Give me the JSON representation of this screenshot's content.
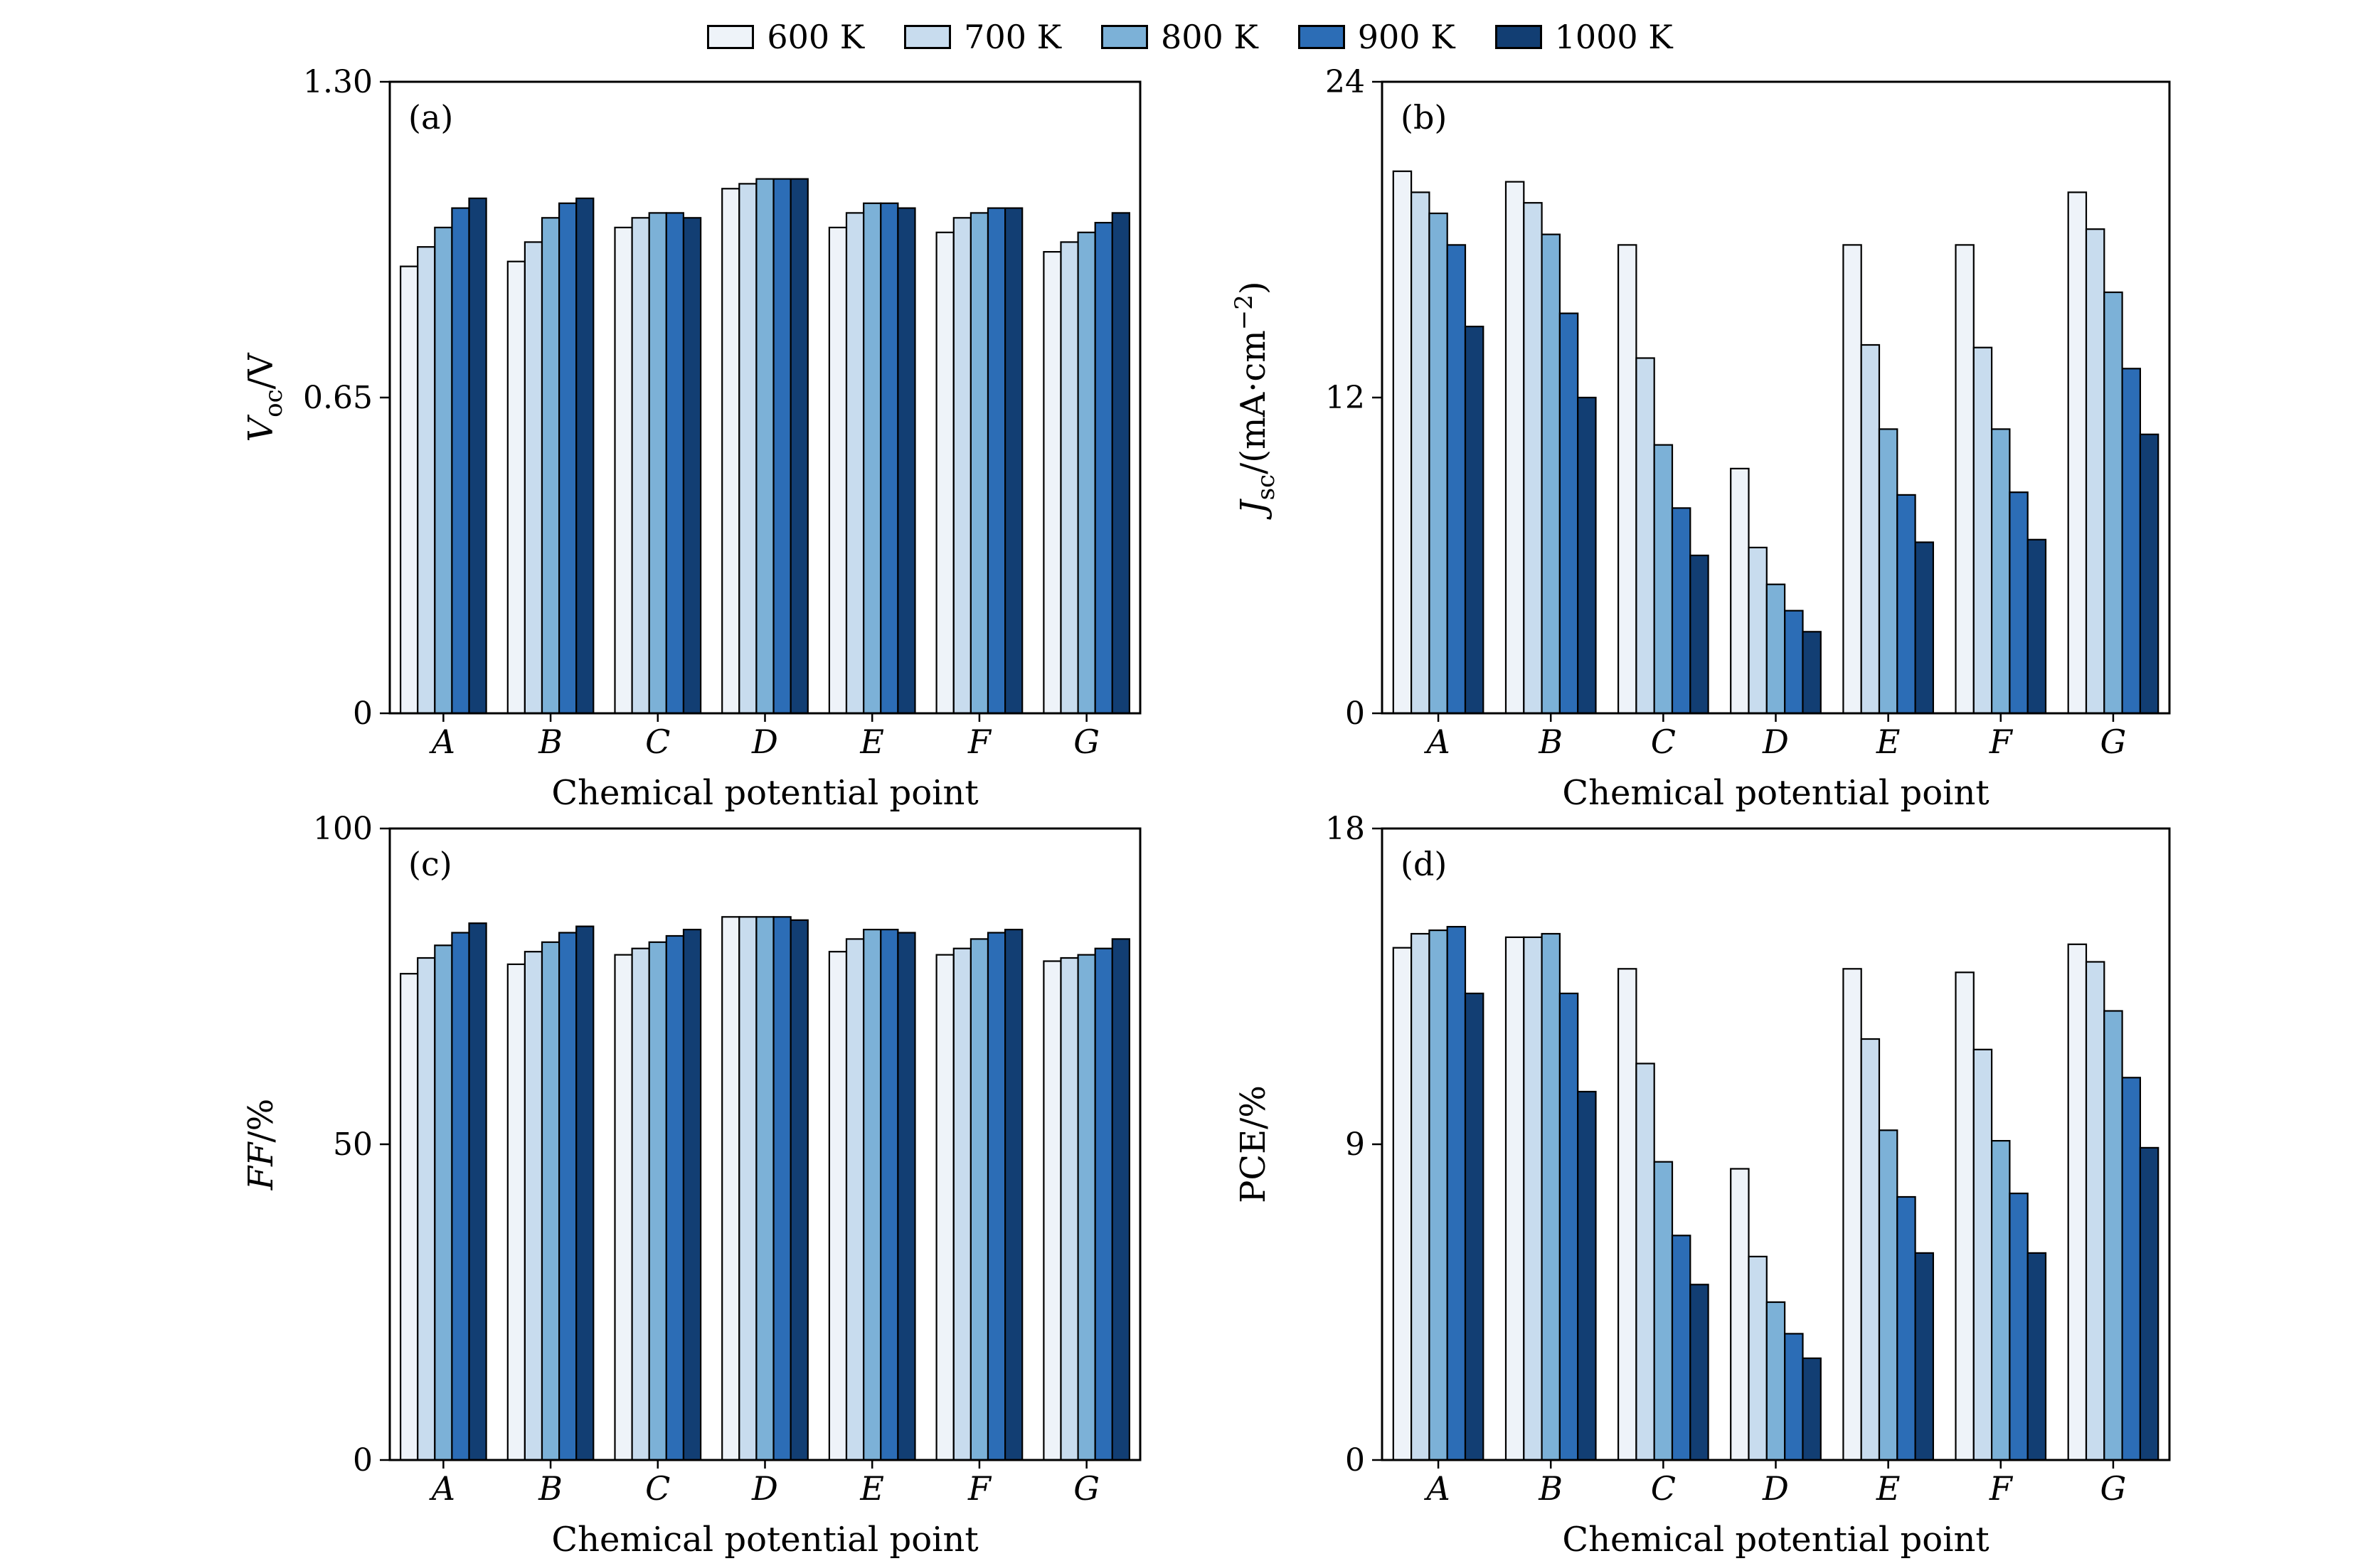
{
  "figure": {
    "legend": [
      {
        "label": "600 K",
        "color": "#eef3f9"
      },
      {
        "label": "700 K",
        "color": "#c8dcee"
      },
      {
        "label": "800 K",
        "color": "#7cb1d7"
      },
      {
        "label": "900 K",
        "color": "#2c6db6"
      },
      {
        "label": "1000 K",
        "color": "#123e73"
      }
    ]
  },
  "chart_data": [
    {
      "type": "bar",
      "panel_tag": "(a)",
      "xlabel": "Chemical potential point",
      "categories": [
        "A",
        "B",
        "C",
        "D",
        "E",
        "F",
        "G"
      ],
      "ylim": [
        0,
        1.3
      ],
      "yticks": [
        {
          "v": 0,
          "label": "0"
        },
        {
          "v": 0.65,
          "label": "0.65"
        },
        {
          "v": 1.3,
          "label": "1.30"
        }
      ],
      "ylabel": [
        {
          "t": "V",
          "s": "italic"
        },
        {
          "t": "oc",
          "s": "sub"
        },
        {
          "t": "/V",
          "s": ""
        }
      ],
      "series": [
        {
          "name": "600 K",
          "values": [
            0.92,
            0.93,
            1.0,
            1.08,
            1.0,
            0.99,
            0.95
          ]
        },
        {
          "name": "700 K",
          "values": [
            0.96,
            0.97,
            1.02,
            1.09,
            1.03,
            1.02,
            0.97
          ]
        },
        {
          "name": "800 K",
          "values": [
            1.0,
            1.02,
            1.03,
            1.1,
            1.05,
            1.03,
            0.99
          ]
        },
        {
          "name": "900 K",
          "values": [
            1.04,
            1.05,
            1.03,
            1.1,
            1.05,
            1.04,
            1.01
          ]
        },
        {
          "name": "1000 K",
          "values": [
            1.06,
            1.06,
            1.02,
            1.1,
            1.04,
            1.04,
            1.03
          ]
        }
      ]
    },
    {
      "type": "bar",
      "panel_tag": "(b)",
      "xlabel": "Chemical potential point",
      "categories": [
        "A",
        "B",
        "C",
        "D",
        "E",
        "F",
        "G"
      ],
      "ylim": [
        0,
        24
      ],
      "yticks": [
        {
          "v": 0,
          "label": "0"
        },
        {
          "v": 12,
          "label": "12"
        },
        {
          "v": 24,
          "label": "24"
        }
      ],
      "ylabel": [
        {
          "t": "J",
          "s": "italic"
        },
        {
          "t": "sc",
          "s": "sub"
        },
        {
          "t": "/(mA·cm",
          "s": ""
        },
        {
          "t": "−2",
          "s": "sup"
        },
        {
          "t": ")",
          "s": ""
        }
      ],
      "series": [
        {
          "name": "600 K",
          "values": [
            20.6,
            20.2,
            17.8,
            9.3,
            17.8,
            17.8,
            19.8
          ]
        },
        {
          "name": "700 K",
          "values": [
            19.8,
            19.4,
            13.5,
            6.3,
            14.0,
            13.9,
            18.4
          ]
        },
        {
          "name": "800 K",
          "values": [
            19.0,
            18.2,
            10.2,
            4.9,
            10.8,
            10.8,
            16.0
          ]
        },
        {
          "name": "900 K",
          "values": [
            17.8,
            15.2,
            7.8,
            3.9,
            8.3,
            8.4,
            13.1
          ]
        },
        {
          "name": "1000 K",
          "values": [
            14.7,
            12.0,
            6.0,
            3.1,
            6.5,
            6.6,
            10.6
          ]
        }
      ]
    },
    {
      "type": "bar",
      "panel_tag": "(c)",
      "xlabel": "Chemical potential point",
      "categories": [
        "A",
        "B",
        "C",
        "D",
        "E",
        "F",
        "G"
      ],
      "ylim": [
        0,
        100
      ],
      "yticks": [
        {
          "v": 0,
          "label": "0"
        },
        {
          "v": 50,
          "label": "50"
        },
        {
          "v": 100,
          "label": "100"
        }
      ],
      "ylabel": [
        {
          "t": "FF",
          "s": "italic"
        },
        {
          "t": "/%",
          "s": ""
        }
      ],
      "series": [
        {
          "name": "600 K",
          "values": [
            77.0,
            78.5,
            80.0,
            86.0,
            80.5,
            80.0,
            79.0
          ]
        },
        {
          "name": "700 K",
          "values": [
            79.5,
            80.5,
            81.0,
            86.0,
            82.5,
            81.0,
            79.5
          ]
        },
        {
          "name": "800 K",
          "values": [
            81.5,
            82.0,
            82.0,
            86.0,
            84.0,
            82.5,
            80.0
          ]
        },
        {
          "name": "900 K",
          "values": [
            83.5,
            83.5,
            83.0,
            86.0,
            84.0,
            83.5,
            81.0
          ]
        },
        {
          "name": "1000 K",
          "values": [
            85.0,
            84.5,
            84.0,
            85.5,
            83.5,
            84.0,
            82.5
          ]
        }
      ]
    },
    {
      "type": "bar",
      "panel_tag": "(d)",
      "xlabel": "Chemical potential point",
      "categories": [
        "A",
        "B",
        "C",
        "D",
        "E",
        "F",
        "G"
      ],
      "ylim": [
        0,
        18
      ],
      "yticks": [
        {
          "v": 0,
          "label": "0"
        },
        {
          "v": 9,
          "label": "9"
        },
        {
          "v": 18,
          "label": "18"
        }
      ],
      "ylabel": [
        {
          "t": "PCE/%",
          "s": ""
        }
      ],
      "series": [
        {
          "name": "600 K",
          "values": [
            14.6,
            14.9,
            14.0,
            8.3,
            14.0,
            13.9,
            14.7
          ]
        },
        {
          "name": "700 K",
          "values": [
            15.0,
            14.9,
            11.3,
            5.8,
            12.0,
            11.7,
            14.2
          ]
        },
        {
          "name": "800 K",
          "values": [
            15.1,
            15.0,
            8.5,
            4.5,
            9.4,
            9.1,
            12.8
          ]
        },
        {
          "name": "900 K",
          "values": [
            15.2,
            13.3,
            6.4,
            3.6,
            7.5,
            7.6,
            10.9
          ]
        },
        {
          "name": "1000 K",
          "values": [
            13.3,
            10.5,
            5.0,
            2.9,
            5.9,
            5.9,
            8.9
          ]
        }
      ]
    }
  ]
}
